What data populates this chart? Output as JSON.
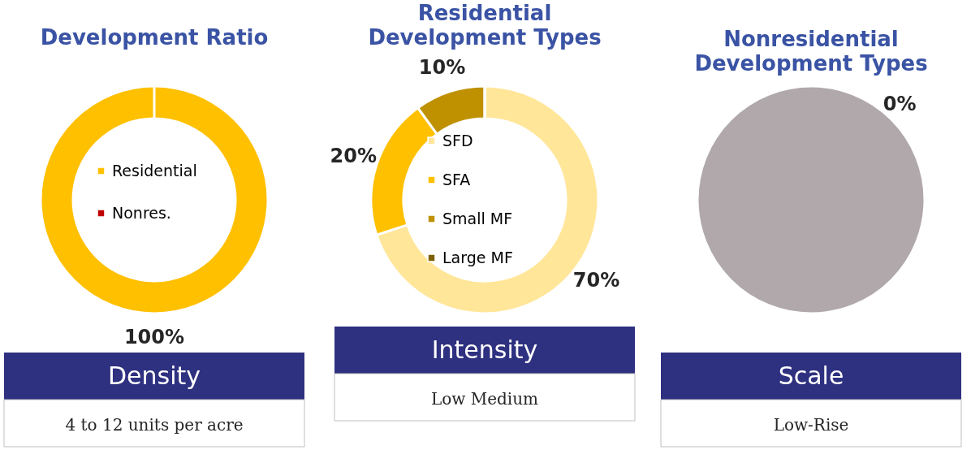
{
  "chart_data": [
    {
      "type": "donut",
      "title": "Development Ratio",
      "categories": [
        "Residential",
        "Nonres."
      ],
      "values": [
        100,
        0
      ],
      "colors": [
        "#ffc000",
        "#c00000"
      ],
      "value_labels": [
        "100%",
        null
      ],
      "legend": "center"
    },
    {
      "type": "donut",
      "title": "Residential Development Types",
      "categories": [
        "SFD",
        "SFA",
        "Small MF",
        "Large MF"
      ],
      "values": [
        70,
        20,
        10,
        0
      ],
      "colors": [
        "#ffe699",
        "#ffc000",
        "#bf9000",
        "#7f6000"
      ],
      "value_labels": [
        "70%",
        "20%",
        "10%",
        null
      ],
      "legend": "center"
    },
    {
      "type": "pie",
      "title": "Nonresidential Development Types",
      "categories": [
        null
      ],
      "values": [
        100
      ],
      "colors": [
        "#b0a8ab"
      ],
      "annotations": [
        "0%"
      ]
    },
    {
      "type": "other",
      "title": "Density",
      "annotations": [
        "4 to 12 units per acre"
      ]
    },
    {
      "type": "other",
      "title": "Intensity",
      "annotations": [
        "Low Medium"
      ]
    },
    {
      "type": "other",
      "title": "Scale",
      "annotations": [
        "Low-Rise"
      ]
    }
  ]
}
